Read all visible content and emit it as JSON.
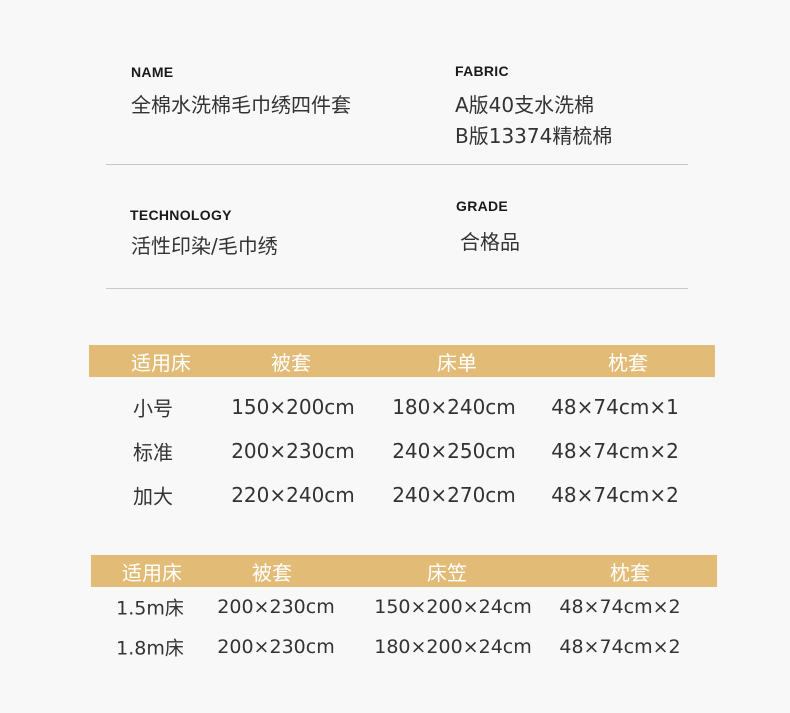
{
  "specs": {
    "name": {
      "label": "NAME",
      "value": "全棉水洗棉毛巾绣四件套"
    },
    "fabric": {
      "label": "FABRIC",
      "values": [
        "A版40支水洗棉",
        "B版13374精梳棉"
      ]
    },
    "technology": {
      "label": "TECHNOLOGY",
      "value": "活性印染/毛巾绣"
    },
    "grade": {
      "label": "GRADE",
      "value": "合格品"
    }
  },
  "table1": {
    "headers": [
      "适用床",
      "被套",
      "床单",
      "枕套"
    ],
    "rows": [
      [
        "小号",
        "150×200cm",
        "180×240cm",
        "48×74cm×1"
      ],
      [
        "标准",
        "200×230cm",
        "240×250cm",
        "48×74cm×2"
      ],
      [
        "加大",
        "220×240cm",
        "240×270cm",
        "48×74cm×2"
      ]
    ]
  },
  "table2": {
    "headers": [
      "适用床",
      "被套",
      "床笠",
      "枕套"
    ],
    "rows": [
      [
        "1.5m床",
        "200×230cm",
        "150×200×24cm",
        "48×74cm×2"
      ],
      [
        "1.8m床",
        "200×230cm",
        "180×200×24cm",
        "48×74cm×2"
      ]
    ]
  },
  "colors": {
    "header_bar": "#e2bb76",
    "background": "#f8f8f8"
  }
}
